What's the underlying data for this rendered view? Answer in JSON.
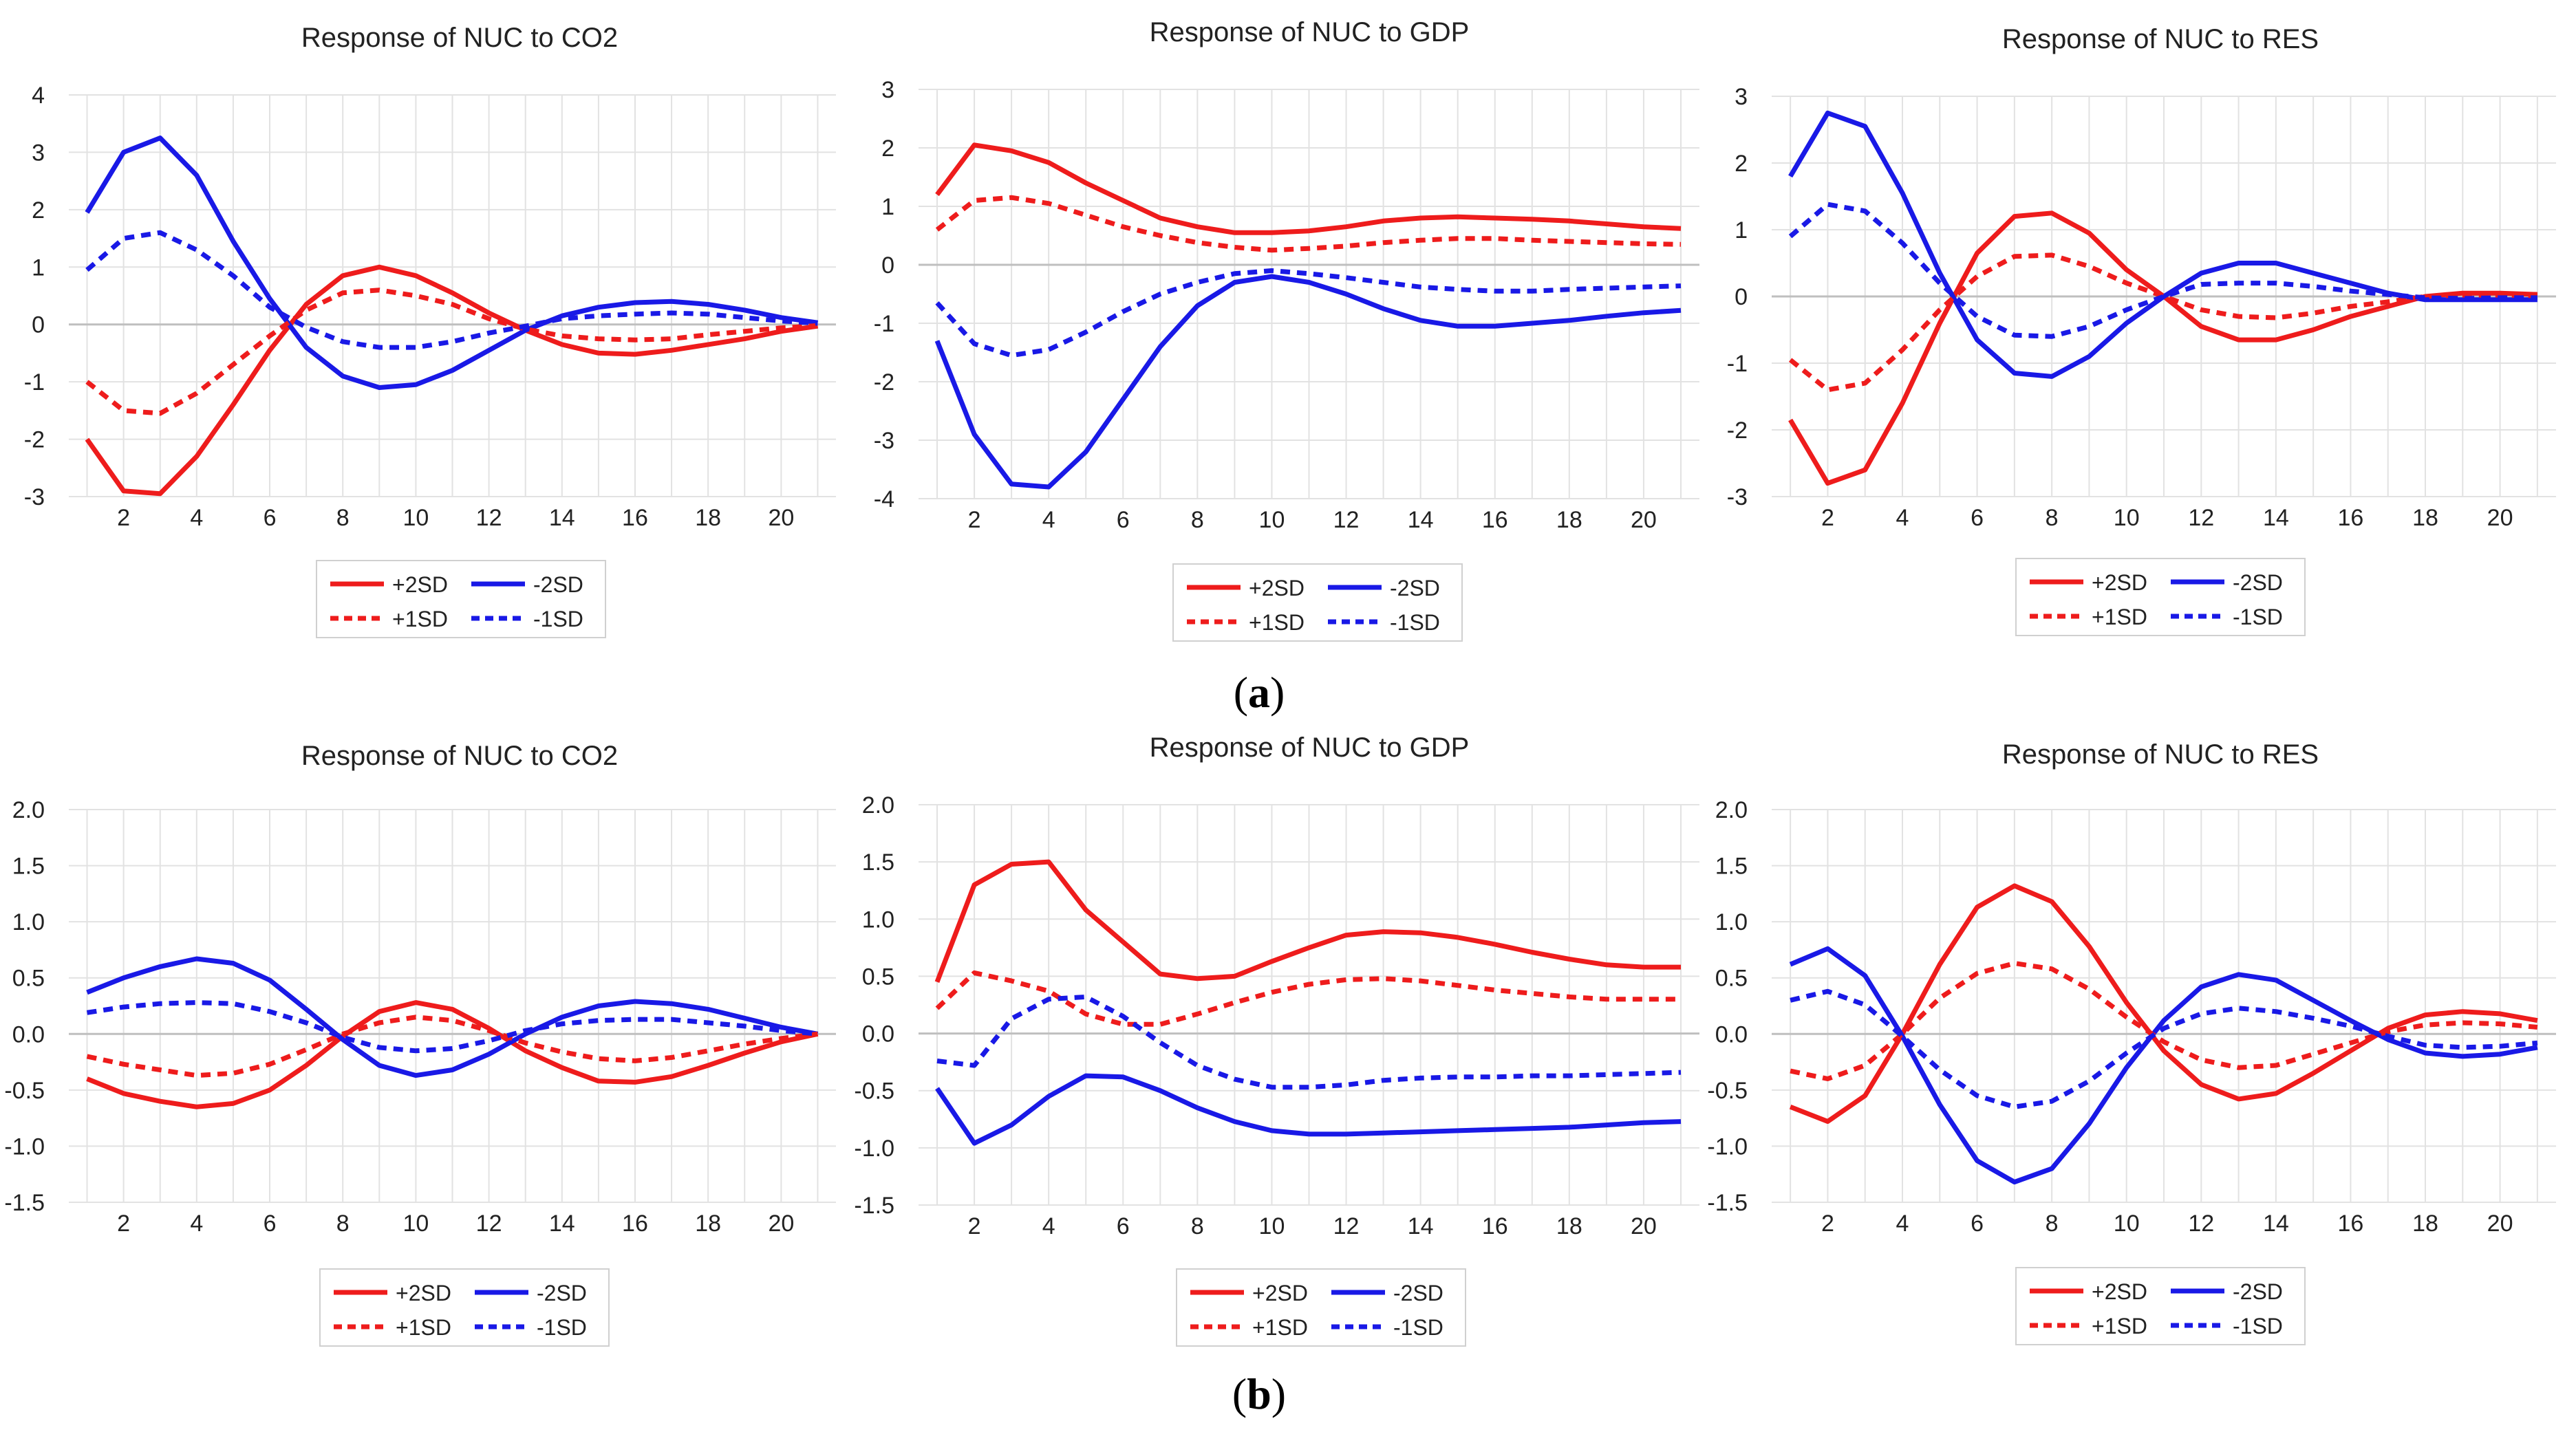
{
  "colors": {
    "red": "#ee1c1c",
    "blue": "#1919e6",
    "grid": "#e2e2e2",
    "zero": "#bfbfbf"
  },
  "legend": {
    "p2": "+2SD",
    "m2": "-2SD",
    "p1": "+1SD",
    "m1": "-1SD"
  },
  "panels": [
    {
      "label_open": "(",
      "letter": "a",
      "label_close": ")"
    },
    {
      "label_open": "(",
      "letter": "b",
      "label_close": ")"
    }
  ],
  "chart_data": [
    {
      "type": "line",
      "title": "Response of NUC to CO2",
      "panel": "a",
      "x": [
        1,
        2,
        3,
        4,
        5,
        6,
        7,
        8,
        9,
        10,
        11,
        12,
        13,
        14,
        15,
        16,
        17,
        18,
        19,
        20,
        21
      ],
      "xticks": [
        2,
        4,
        6,
        8,
        10,
        12,
        14,
        16,
        18,
        20
      ],
      "ylim": [
        -3,
        4
      ],
      "yticks": [
        "-3",
        "-2",
        "-1",
        "0",
        "1",
        "2",
        "3",
        "4"
      ],
      "series": [
        {
          "name": "+2SD",
          "values": [
            -2.0,
            -2.9,
            -2.95,
            -2.3,
            -1.4,
            -0.45,
            0.35,
            0.85,
            1.0,
            0.85,
            0.55,
            0.2,
            -0.1,
            -0.35,
            -0.5,
            -0.52,
            -0.45,
            -0.35,
            -0.25,
            -0.12,
            -0.03
          ]
        },
        {
          "name": "-2SD",
          "values": [
            1.95,
            3.0,
            3.25,
            2.6,
            1.45,
            0.45,
            -0.4,
            -0.9,
            -1.1,
            -1.05,
            -0.8,
            -0.45,
            -0.1,
            0.15,
            0.3,
            0.38,
            0.4,
            0.35,
            0.25,
            0.12,
            0.03
          ]
        },
        {
          "name": "+1SD",
          "values": [
            -1.0,
            -1.5,
            -1.55,
            -1.2,
            -0.7,
            -0.2,
            0.25,
            0.55,
            0.6,
            0.5,
            0.35,
            0.1,
            -0.08,
            -0.2,
            -0.25,
            -0.27,
            -0.25,
            -0.18,
            -0.12,
            -0.06,
            -0.02
          ]
        },
        {
          "name": "-1SD",
          "values": [
            0.95,
            1.5,
            1.6,
            1.3,
            0.85,
            0.3,
            -0.05,
            -0.3,
            -0.4,
            -0.4,
            -0.3,
            -0.15,
            -0.03,
            0.1,
            0.15,
            0.18,
            0.2,
            0.18,
            0.12,
            0.06,
            0.02
          ]
        }
      ]
    },
    {
      "type": "line",
      "title": "Response of NUC to GDP",
      "panel": "a",
      "x": [
        1,
        2,
        3,
        4,
        5,
        6,
        7,
        8,
        9,
        10,
        11,
        12,
        13,
        14,
        15,
        16,
        17,
        18,
        19,
        20,
        21
      ],
      "xticks": [
        2,
        4,
        6,
        8,
        10,
        12,
        14,
        16,
        18,
        20
      ],
      "ylim": [
        -4,
        3
      ],
      "yticks": [
        "-4",
        "-3",
        "-2",
        "-1",
        "0",
        "1",
        "2",
        "3"
      ],
      "series": [
        {
          "name": "+2SD",
          "values": [
            1.2,
            2.05,
            1.95,
            1.75,
            1.4,
            1.1,
            0.8,
            0.65,
            0.55,
            0.55,
            0.58,
            0.65,
            0.75,
            0.8,
            0.82,
            0.8,
            0.78,
            0.75,
            0.7,
            0.65,
            0.62
          ]
        },
        {
          "name": "-2SD",
          "values": [
            -1.3,
            -2.9,
            -3.75,
            -3.8,
            -3.2,
            -2.3,
            -1.4,
            -0.7,
            -0.3,
            -0.2,
            -0.3,
            -0.5,
            -0.75,
            -0.95,
            -1.05,
            -1.05,
            -1.0,
            -0.95,
            -0.88,
            -0.82,
            -0.78
          ]
        },
        {
          "name": "+1SD",
          "values": [
            0.6,
            1.1,
            1.15,
            1.05,
            0.85,
            0.65,
            0.5,
            0.38,
            0.3,
            0.25,
            0.28,
            0.32,
            0.38,
            0.42,
            0.45,
            0.45,
            0.42,
            0.4,
            0.38,
            0.36,
            0.35
          ]
        },
        {
          "name": "-1SD",
          "values": [
            -0.65,
            -1.35,
            -1.55,
            -1.45,
            -1.15,
            -0.8,
            -0.5,
            -0.3,
            -0.15,
            -0.1,
            -0.15,
            -0.22,
            -0.3,
            -0.38,
            -0.42,
            -0.45,
            -0.45,
            -0.42,
            -0.4,
            -0.38,
            -0.36
          ]
        }
      ]
    },
    {
      "type": "line",
      "title": "Response of NUC to RES",
      "panel": "a",
      "x": [
        1,
        2,
        3,
        4,
        5,
        6,
        7,
        8,
        9,
        10,
        11,
        12,
        13,
        14,
        15,
        16,
        17,
        18,
        19,
        20,
        21
      ],
      "xticks": [
        2,
        4,
        6,
        8,
        10,
        12,
        14,
        16,
        18,
        20
      ],
      "ylim": [
        -3,
        3
      ],
      "yticks": [
        "-3",
        "-2",
        "-1",
        "0",
        "1",
        "2",
        "3"
      ],
      "series": [
        {
          "name": "+2SD",
          "values": [
            -1.85,
            -2.8,
            -2.6,
            -1.6,
            -0.4,
            0.65,
            1.2,
            1.25,
            0.95,
            0.4,
            0.0,
            -0.45,
            -0.65,
            -0.65,
            -0.5,
            -0.3,
            -0.15,
            0.0,
            0.05,
            0.05,
            0.03
          ]
        },
        {
          "name": "-2SD",
          "values": [
            1.8,
            2.75,
            2.55,
            1.55,
            0.35,
            -0.65,
            -1.15,
            -1.2,
            -0.9,
            -0.4,
            0.0,
            0.35,
            0.5,
            0.5,
            0.35,
            0.2,
            0.05,
            -0.05,
            -0.05,
            -0.05,
            -0.05
          ]
        },
        {
          "name": "+1SD",
          "values": [
            -0.95,
            -1.4,
            -1.3,
            -0.8,
            -0.2,
            0.3,
            0.6,
            0.62,
            0.45,
            0.2,
            0.0,
            -0.2,
            -0.3,
            -0.32,
            -0.25,
            -0.15,
            -0.08,
            0.0,
            0.02,
            0.02,
            0.01
          ]
        },
        {
          "name": "-1SD",
          "values": [
            0.9,
            1.38,
            1.28,
            0.8,
            0.2,
            -0.3,
            -0.58,
            -0.6,
            -0.45,
            -0.2,
            0.0,
            0.18,
            0.2,
            0.2,
            0.15,
            0.08,
            0.03,
            -0.02,
            -0.03,
            -0.02,
            -0.02
          ]
        }
      ]
    },
    {
      "type": "line",
      "title": "Response of NUC to CO2",
      "panel": "b",
      "x": [
        1,
        2,
        3,
        4,
        5,
        6,
        7,
        8,
        9,
        10,
        11,
        12,
        13,
        14,
        15,
        16,
        17,
        18,
        19,
        20,
        21
      ],
      "xticks": [
        2,
        4,
        6,
        8,
        10,
        12,
        14,
        16,
        18,
        20
      ],
      "ylim": [
        -1.5,
        2.0
      ],
      "yticks": [
        "-1.5",
        "-1.0",
        "-0.5",
        "0.0",
        "0.5",
        "1.0",
        "1.5",
        "2.0"
      ],
      "series": [
        {
          "name": "+2SD",
          "values": [
            -0.4,
            -0.53,
            -0.6,
            -0.65,
            -0.62,
            -0.5,
            -0.28,
            -0.02,
            0.2,
            0.28,
            0.22,
            0.05,
            -0.15,
            -0.3,
            -0.42,
            -0.43,
            -0.38,
            -0.28,
            -0.17,
            -0.07,
            0.0
          ]
        },
        {
          "name": "-2SD",
          "values": [
            0.37,
            0.5,
            0.6,
            0.67,
            0.63,
            0.48,
            0.22,
            -0.05,
            -0.28,
            -0.37,
            -0.32,
            -0.18,
            0.0,
            0.15,
            0.25,
            0.29,
            0.27,
            0.22,
            0.14,
            0.06,
            0.0
          ]
        },
        {
          "name": "+1SD",
          "values": [
            -0.2,
            -0.27,
            -0.32,
            -0.37,
            -0.35,
            -0.27,
            -0.14,
            0.0,
            0.1,
            0.15,
            0.12,
            0.03,
            -0.08,
            -0.16,
            -0.22,
            -0.24,
            -0.21,
            -0.15,
            -0.09,
            -0.04,
            0.0
          ]
        },
        {
          "name": "-1SD",
          "values": [
            0.19,
            0.24,
            0.27,
            0.28,
            0.27,
            0.2,
            0.1,
            -0.03,
            -0.12,
            -0.15,
            -0.13,
            -0.06,
            0.03,
            0.09,
            0.12,
            0.13,
            0.13,
            0.1,
            0.07,
            0.03,
            0.0
          ]
        }
      ]
    },
    {
      "type": "line",
      "title": "Response of NUC to GDP",
      "panel": "b",
      "x": [
        1,
        2,
        3,
        4,
        5,
        6,
        7,
        8,
        9,
        10,
        11,
        12,
        13,
        14,
        15,
        16,
        17,
        18,
        19,
        20,
        21
      ],
      "xticks": [
        2,
        4,
        6,
        8,
        10,
        12,
        14,
        16,
        18,
        20
      ],
      "ylim": [
        -1.5,
        2.0
      ],
      "yticks": [
        "-1.5",
        "-1.0",
        "-0.5",
        "0.0",
        "0.5",
        "1.0",
        "1.5",
        "2.0"
      ],
      "series": [
        {
          "name": "+2SD",
          "values": [
            0.45,
            1.3,
            1.48,
            1.5,
            1.08,
            0.8,
            0.52,
            0.48,
            0.5,
            0.63,
            0.75,
            0.86,
            0.89,
            0.88,
            0.84,
            0.78,
            0.71,
            0.65,
            0.6,
            0.58,
            0.58
          ]
        },
        {
          "name": "-2SD",
          "values": [
            -0.48,
            -0.96,
            -0.8,
            -0.55,
            -0.37,
            -0.38,
            -0.5,
            -0.65,
            -0.77,
            -0.85,
            -0.88,
            -0.88,
            -0.87,
            -0.86,
            -0.85,
            -0.84,
            -0.83,
            -0.82,
            -0.8,
            -0.78,
            -0.77
          ]
        },
        {
          "name": "+1SD",
          "values": [
            0.22,
            0.53,
            0.46,
            0.37,
            0.17,
            0.08,
            0.08,
            0.17,
            0.27,
            0.36,
            0.43,
            0.47,
            0.48,
            0.46,
            0.42,
            0.38,
            0.35,
            0.32,
            0.3,
            0.3,
            0.3
          ]
        },
        {
          "name": "-1SD",
          "values": [
            -0.24,
            -0.28,
            0.13,
            0.3,
            0.32,
            0.15,
            -0.08,
            -0.28,
            -0.4,
            -0.47,
            -0.47,
            -0.45,
            -0.41,
            -0.39,
            -0.38,
            -0.38,
            -0.37,
            -0.37,
            -0.36,
            -0.35,
            -0.34
          ]
        }
      ]
    },
    {
      "type": "line",
      "title": "Response of NUC to RES",
      "panel": "b",
      "x": [
        1,
        2,
        3,
        4,
        5,
        6,
        7,
        8,
        9,
        10,
        11,
        12,
        13,
        14,
        15,
        16,
        17,
        18,
        19,
        20,
        21
      ],
      "xticks": [
        2,
        4,
        6,
        8,
        10,
        12,
        14,
        16,
        18,
        20
      ],
      "ylim": [
        -1.5,
        2.0
      ],
      "yticks": [
        "-1.5",
        "-1.0",
        "-0.5",
        "0.0",
        "0.5",
        "1.0",
        "1.5",
        "2.0"
      ],
      "series": [
        {
          "name": "+2SD",
          "values": [
            -0.65,
            -0.78,
            -0.55,
            0.0,
            0.62,
            1.13,
            1.32,
            1.18,
            0.78,
            0.28,
            -0.15,
            -0.45,
            -0.58,
            -0.53,
            -0.35,
            -0.15,
            0.05,
            0.17,
            0.2,
            0.18,
            0.12
          ]
        },
        {
          "name": "-2SD",
          "values": [
            0.62,
            0.76,
            0.52,
            -0.02,
            -0.63,
            -1.13,
            -1.32,
            -1.2,
            -0.8,
            -0.3,
            0.12,
            0.42,
            0.53,
            0.48,
            0.3,
            0.12,
            -0.05,
            -0.17,
            -0.2,
            -0.18,
            -0.12
          ]
        },
        {
          "name": "+1SD",
          "values": [
            -0.33,
            -0.4,
            -0.28,
            0.0,
            0.32,
            0.54,
            0.63,
            0.58,
            0.4,
            0.15,
            -0.07,
            -0.23,
            -0.3,
            -0.28,
            -0.18,
            -0.08,
            0.02,
            0.08,
            0.1,
            0.09,
            0.06
          ]
        },
        {
          "name": "-1SD",
          "values": [
            0.3,
            0.38,
            0.26,
            -0.02,
            -0.32,
            -0.55,
            -0.65,
            -0.6,
            -0.42,
            -0.17,
            0.05,
            0.18,
            0.23,
            0.2,
            0.14,
            0.07,
            -0.02,
            -0.1,
            -0.12,
            -0.11,
            -0.08
          ]
        }
      ]
    }
  ]
}
